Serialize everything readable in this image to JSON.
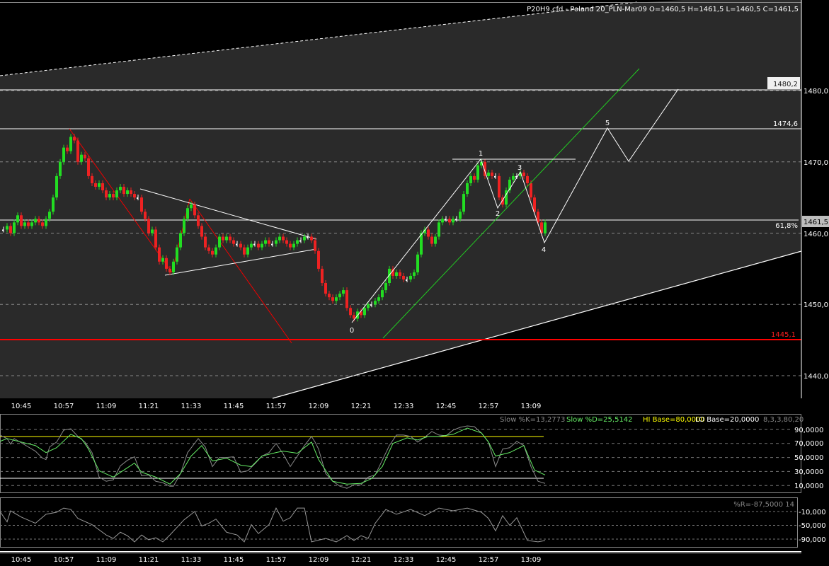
{
  "header": {
    "title": "P20H9.cfd - Poland 20_PLN-Mar09 O=1460,5 H=1461,5 L=1460,5 C=1461,5"
  },
  "colors": {
    "up": "#22dd22",
    "down": "#ee2222",
    "doji": "#ffffff",
    "channel_bg": "#2a2a2a",
    "support": "#ff0000",
    "stoch_k": "#8a8a8a",
    "stoch_d": "#66ee66",
    "hi_base": "#ffff00",
    "lo_base": "#ffffff"
  },
  "price_axis": {
    "ticks": [
      "1480,0",
      "1470,0",
      "1460,0",
      "1450,0",
      "1440,0"
    ],
    "current_price_label": "1461,5"
  },
  "levels": {
    "resistance_label": "1480,2",
    "level_2_label": "1474,6",
    "fib_label": "61,8%",
    "support_label": "1445,1"
  },
  "waves": [
    "0",
    "1",
    "2",
    "3",
    "4",
    "5"
  ],
  "time_axis": [
    "10:45",
    "10:57",
    "11:09",
    "11:21",
    "11:33",
    "11:45",
    "11:57",
    "12:09",
    "12:21",
    "12:33",
    "12:45",
    "12:57",
    "13:09"
  ],
  "chart_data": [
    {
      "type": "candlestick",
      "interval": "1 min",
      "closes": [
        1460.5,
        1461,
        1460,
        1461.5,
        1462.5,
        1461,
        1461.5,
        1461,
        1461.5,
        1462,
        1461.5,
        1461,
        1462,
        1463,
        1465,
        1468,
        1470,
        1472,
        1471.5,
        1473.5,
        1473,
        1470,
        1471,
        1470.5,
        1468,
        1467,
        1466.5,
        1467,
        1466,
        1465,
        1465.5,
        1465,
        1466,
        1466.5,
        1465.5,
        1466,
        1465.5,
        1465,
        1465,
        1463,
        1462,
        1460,
        1460.5,
        1458,
        1456,
        1456.5,
        1455,
        1454.5,
        1456,
        1458,
        1460,
        1462,
        1463.5,
        1464,
        1462.5,
        1461,
        1459.5,
        1458,
        1457.5,
        1457,
        1458,
        1459.5,
        1459,
        1459.5,
        1459,
        1458.5,
        1458.5,
        1458,
        1457,
        1458,
        1458.5,
        1458.5,
        1458,
        1458.5,
        1459,
        1458.5,
        1458.5,
        1459,
        1459.5,
        1459,
        1458.5,
        1458,
        1458.5,
        1459,
        1459,
        1459.5,
        1459.5,
        1459,
        1457.5,
        1455,
        1453,
        1451.5,
        1451,
        1450.5,
        1451,
        1451.5,
        1452,
        1449.5,
        1448.5,
        1448,
        1449,
        1448.5,
        1449.5,
        1450,
        1450,
        1450.5,
        1451,
        1452,
        1453,
        1455,
        1454,
        1454.5,
        1454,
        1453.5,
        1453.5,
        1454,
        1454.5,
        1457,
        1460,
        1460.5,
        1459.5,
        1458.5,
        1459.5,
        1461.5,
        1462,
        1462,
        1461.5,
        1462,
        1462,
        1463,
        1465.5,
        1467,
        1468,
        1467.5,
        1469.5,
        1470,
        1468,
        1468.5,
        1468,
        1468,
        1465,
        1464,
        1466,
        1467.5,
        1468,
        1468,
        1468.5,
        1468,
        1467,
        1465,
        1463,
        1461.5,
        1460,
        1461.5
      ],
      "ylim": [
        1437,
        1497
      ],
      "grid": true
    },
    {
      "type": "line",
      "legend": {
        "k": "Slow %K=13,2773",
        "d": "Slow %D=25,5142",
        "hi": "HI Base=80,0000",
        "lo": "LO Base=20,0000",
        "params": "8,3,3,80,20"
      },
      "ticks": [
        "90,0000",
        "70,0000",
        "50,0000",
        "30,0000",
        "10,0000"
      ],
      "hi_base": 80,
      "lo_base": 20,
      "series": [
        {
          "name": "Slow %K",
          "points": [
            [
              "10:39",
              82
            ],
            [
              "10:41",
              77
            ],
            [
              "10:42",
              69
            ],
            [
              "10:43",
              77
            ],
            [
              "10:45",
              71
            ],
            [
              "10:47",
              65
            ],
            [
              "10:49",
              59
            ],
            [
              "10:51",
              49
            ],
            [
              "10:52",
              47
            ],
            [
              "10:53",
              65
            ],
            [
              "10:55",
              72
            ],
            [
              "10:57",
              89
            ],
            [
              "10:59",
              91
            ],
            [
              "11:01",
              80
            ],
            [
              "11:03",
              72
            ],
            [
              "11:05",
              57
            ],
            [
              "11:07",
              22
            ],
            [
              "11:09",
              16
            ],
            [
              "11:11",
              18
            ],
            [
              "11:13",
              38
            ],
            [
              "11:15",
              46
            ],
            [
              "11:17",
              51
            ],
            [
              "11:19",
              24
            ],
            [
              "11:21",
              25
            ],
            [
              "11:23",
              16
            ],
            [
              "11:25",
              14
            ],
            [
              "11:27",
              9
            ],
            [
              "11:28",
              9
            ],
            [
              "11:30",
              27
            ],
            [
              "11:32",
              57
            ],
            [
              "11:35",
              77
            ],
            [
              "11:37",
              65
            ],
            [
              "11:39",
              37
            ],
            [
              "11:41",
              50
            ],
            [
              "11:43",
              50
            ],
            [
              "11:45",
              51
            ],
            [
              "11:47",
              29
            ],
            [
              "11:49",
              31
            ],
            [
              "11:51",
              41
            ],
            [
              "11:53",
              52
            ],
            [
              "11:55",
              57
            ],
            [
              "11:57",
              70
            ],
            [
              "11:59",
              55
            ],
            [
              "12:01",
              37
            ],
            [
              "12:03",
              52
            ],
            [
              "12:05",
              67
            ],
            [
              "12:07",
              80
            ],
            [
              "12:08",
              72
            ],
            [
              "12:09",
              62
            ],
            [
              "12:11",
              27
            ],
            [
              "12:13",
              16
            ],
            [
              "12:15",
              9
            ],
            [
              "12:17",
              6
            ],
            [
              "12:19",
              11
            ],
            [
              "12:21",
              11
            ],
            [
              "12:23",
              22
            ],
            [
              "12:25",
              25
            ],
            [
              "12:27",
              46
            ],
            [
              "12:29",
              67
            ],
            [
              "12:31",
              82
            ],
            [
              "12:33",
              82
            ],
            [
              "12:35",
              80
            ],
            [
              "12:37",
              72
            ],
            [
              "12:39",
              79
            ],
            [
              "12:41",
              87
            ],
            [
              "12:43",
              82
            ],
            [
              "12:45",
              81
            ],
            [
              "12:47",
              89
            ],
            [
              "12:49",
              93
            ],
            [
              "12:51",
              95
            ],
            [
              "12:53",
              94
            ],
            [
              "12:55",
              85
            ],
            [
              "12:57",
              72
            ],
            [
              "12:59",
              37
            ],
            [
              "13:01",
              62
            ],
            [
              "13:03",
              64
            ],
            [
              "13:05",
              73
            ],
            [
              "13:07",
              67
            ],
            [
              "13:09",
              37
            ],
            [
              "13:11",
              16
            ],
            [
              "13:13",
              13
            ]
          ]
        },
        {
          "name": "Slow %D",
          "points": [
            [
              "10:39",
              73
            ],
            [
              "10:41",
              77
            ],
            [
              "10:45",
              72
            ],
            [
              "10:49",
              67
            ],
            [
              "10:52",
              57
            ],
            [
              "10:55",
              64
            ],
            [
              "10:59",
              83
            ],
            [
              "11:02",
              77
            ],
            [
              "11:04",
              62
            ],
            [
              "11:07",
              31
            ],
            [
              "11:11",
              22
            ],
            [
              "11:14",
              32
            ],
            [
              "11:17",
              42
            ],
            [
              "11:19",
              29
            ],
            [
              "11:23",
              22
            ],
            [
              "11:27",
              12
            ],
            [
              "11:30",
              27
            ],
            [
              "11:33",
              52
            ],
            [
              "11:36",
              67
            ],
            [
              "11:39",
              45
            ],
            [
              "11:43",
              49
            ],
            [
              "11:47",
              39
            ],
            [
              "11:50",
              37
            ],
            [
              "11:53",
              52
            ],
            [
              "11:57",
              57
            ],
            [
              "11:59",
              59
            ],
            [
              "12:03",
              56
            ],
            [
              "12:07",
              72
            ],
            [
              "12:09",
              47
            ],
            [
              "12:13",
              16
            ],
            [
              "12:17",
              12
            ],
            [
              "12:21",
              13
            ],
            [
              "12:24",
              20
            ],
            [
              "12:27",
              37
            ],
            [
              "12:30",
              70
            ],
            [
              "12:34",
              78
            ],
            [
              "12:37",
              75
            ],
            [
              "12:40",
              80
            ],
            [
              "12:43",
              80
            ],
            [
              "12:47",
              83
            ],
            [
              "12:51",
              92
            ],
            [
              "12:55",
              85
            ],
            [
              "12:57",
              72
            ],
            [
              "12:59",
              52
            ],
            [
              "13:03",
              57
            ],
            [
              "13:07",
              67
            ],
            [
              "13:10",
              32
            ],
            [
              "13:13",
              25
            ]
          ]
        }
      ]
    },
    {
      "type": "line",
      "legend": "%R=-87,5000 14",
      "ticks": [
        "-10,000",
        "-50,000",
        "-90,000"
      ],
      "series": [
        {
          "name": "%R",
          "points": [
            [
              "10:39",
              -10
            ],
            [
              "10:41",
              -40
            ],
            [
              "10:42",
              -8
            ],
            [
              "10:45",
              -26
            ],
            [
              "10:49",
              -44
            ],
            [
              "10:52",
              -18
            ],
            [
              "10:55",
              -12
            ],
            [
              "10:57",
              0
            ],
            [
              "10:59",
              -4
            ],
            [
              "11:01",
              -30
            ],
            [
              "11:05",
              -48
            ],
            [
              "11:09",
              -78
            ],
            [
              "11:11",
              -88
            ],
            [
              "11:13",
              -70
            ],
            [
              "11:15",
              -80
            ],
            [
              "11:17",
              -98
            ],
            [
              "11:19",
              -78
            ],
            [
              "11:21",
              -92
            ],
            [
              "11:23",
              -86
            ],
            [
              "11:25",
              -98
            ],
            [
              "11:27",
              -78
            ],
            [
              "11:31",
              -34
            ],
            [
              "11:34",
              -10
            ],
            [
              "11:36",
              -52
            ],
            [
              "11:38",
              -44
            ],
            [
              "11:40",
              -32
            ],
            [
              "11:43",
              -70
            ],
            [
              "11:46",
              -78
            ],
            [
              "11:48",
              -98
            ],
            [
              "11:50",
              -48
            ],
            [
              "11:52",
              -74
            ],
            [
              "11:55",
              -48
            ],
            [
              "11:57",
              0
            ],
            [
              "11:59",
              -38
            ],
            [
              "12:01",
              -28
            ],
            [
              "12:03",
              0
            ],
            [
              "12:05",
              0
            ],
            [
              "12:07",
              -98
            ],
            [
              "12:11",
              -88
            ],
            [
              "12:14",
              -98
            ],
            [
              "12:17",
              -80
            ],
            [
              "12:19",
              -94
            ],
            [
              "12:21",
              -80
            ],
            [
              "12:23",
              -88
            ],
            [
              "12:25",
              -44
            ],
            [
              "12:28",
              -4
            ],
            [
              "12:31",
              -18
            ],
            [
              "12:35",
              -4
            ],
            [
              "12:39",
              -22
            ],
            [
              "12:43",
              0
            ],
            [
              "12:47",
              -8
            ],
            [
              "12:51",
              0
            ],
            [
              "12:55",
              -12
            ],
            [
              "12:57",
              -30
            ],
            [
              "12:59",
              -66
            ],
            [
              "13:01",
              -22
            ],
            [
              "13:03",
              -50
            ],
            [
              "13:05",
              -28
            ],
            [
              "13:08",
              -94
            ],
            [
              "13:11",
              -98
            ],
            [
              "13:13",
              -94
            ]
          ]
        }
      ]
    }
  ]
}
